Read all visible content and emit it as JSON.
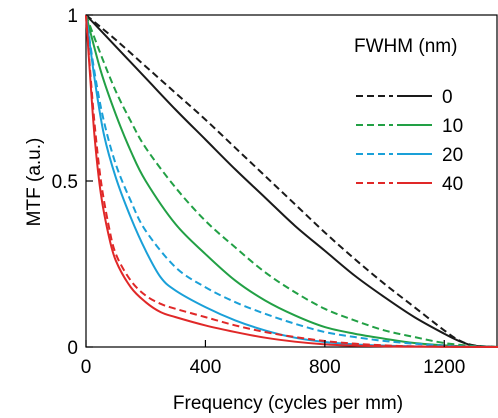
{
  "chart_data": {
    "type": "line",
    "xlabel": "Frequency (cycles per mm)",
    "ylabel": "MTF (a.u.)",
    "xlim": [
      0,
      1380
    ],
    "ylim": [
      0,
      1
    ],
    "x_ticks": [
      0,
      400,
      800,
      1200
    ],
    "y_ticks": [
      0,
      0.5,
      1
    ],
    "y_tick_labels": [
      "0",
      "0.5",
      "1"
    ],
    "grid": false,
    "legend": {
      "title": "FWHM (nm)",
      "placement": "top-right",
      "style_note_entries": [
        "dashed",
        "solid"
      ]
    },
    "series": [
      {
        "name": "0",
        "color": "#1a1a1a",
        "dashed": [
          [
            0,
            1
          ],
          [
            100,
            0.925
          ],
          [
            200,
            0.845
          ],
          [
            300,
            0.765
          ],
          [
            400,
            0.685
          ],
          [
            500,
            0.6
          ],
          [
            600,
            0.515
          ],
          [
            700,
            0.43
          ],
          [
            800,
            0.345
          ],
          [
            900,
            0.265
          ],
          [
            1000,
            0.19
          ],
          [
            1100,
            0.12
          ],
          [
            1200,
            0.05
          ],
          [
            1250,
            0.02
          ],
          [
            1300,
            0.005
          ],
          [
            1380,
            0
          ]
        ],
        "solid": [
          [
            0,
            1
          ],
          [
            100,
            0.905
          ],
          [
            200,
            0.81
          ],
          [
            300,
            0.715
          ],
          [
            400,
            0.625
          ],
          [
            500,
            0.535
          ],
          [
            600,
            0.45
          ],
          [
            700,
            0.365
          ],
          [
            800,
            0.29
          ],
          [
            900,
            0.215
          ],
          [
            1000,
            0.15
          ],
          [
            1100,
            0.09
          ],
          [
            1200,
            0.04
          ],
          [
            1250,
            0.018
          ],
          [
            1300,
            0.004
          ],
          [
            1380,
            0
          ]
        ]
      },
      {
        "name": "10",
        "color": "#22a045",
        "dashed": [
          [
            0,
            1
          ],
          [
            50,
            0.88
          ],
          [
            100,
            0.77
          ],
          [
            150,
            0.68
          ],
          [
            200,
            0.6
          ],
          [
            300,
            0.48
          ],
          [
            400,
            0.38
          ],
          [
            500,
            0.3
          ],
          [
            600,
            0.225
          ],
          [
            700,
            0.165
          ],
          [
            800,
            0.115
          ],
          [
            900,
            0.08
          ],
          [
            1000,
            0.05
          ],
          [
            1100,
            0.03
          ],
          [
            1200,
            0.012
          ],
          [
            1300,
            0.003
          ],
          [
            1380,
            0
          ]
        ],
        "solid": [
          [
            0,
            1
          ],
          [
            50,
            0.83
          ],
          [
            100,
            0.7
          ],
          [
            150,
            0.59
          ],
          [
            200,
            0.5
          ],
          [
            300,
            0.37
          ],
          [
            400,
            0.28
          ],
          [
            500,
            0.2
          ],
          [
            600,
            0.14
          ],
          [
            700,
            0.095
          ],
          [
            800,
            0.06
          ],
          [
            900,
            0.04
          ],
          [
            1000,
            0.025
          ],
          [
            1100,
            0.012
          ],
          [
            1200,
            0.005
          ],
          [
            1300,
            0.001
          ],
          [
            1380,
            0
          ]
        ]
      },
      {
        "name": "20",
        "color": "#1aa0d8",
        "dashed": [
          [
            0,
            1
          ],
          [
            30,
            0.82
          ],
          [
            60,
            0.68
          ],
          [
            100,
            0.55
          ],
          [
            150,
            0.44
          ],
          [
            200,
            0.35
          ],
          [
            300,
            0.24
          ],
          [
            400,
            0.18
          ],
          [
            500,
            0.135
          ],
          [
            600,
            0.1
          ],
          [
            700,
            0.07
          ],
          [
            800,
            0.045
          ],
          [
            900,
            0.03
          ],
          [
            1000,
            0.018
          ],
          [
            1100,
            0.01
          ],
          [
            1200,
            0.004
          ],
          [
            1300,
            0.001
          ],
          [
            1380,
            0
          ]
        ],
        "solid": [
          [
            0,
            1
          ],
          [
            30,
            0.8
          ],
          [
            60,
            0.64
          ],
          [
            100,
            0.51
          ],
          [
            150,
            0.39
          ],
          [
            200,
            0.29
          ],
          [
            250,
            0.21
          ],
          [
            300,
            0.17
          ],
          [
            400,
            0.12
          ],
          [
            500,
            0.08
          ],
          [
            600,
            0.05
          ],
          [
            700,
            0.028
          ],
          [
            800,
            0.015
          ],
          [
            900,
            0.008
          ],
          [
            1000,
            0.004
          ],
          [
            1100,
            0.002
          ],
          [
            1200,
            0.001
          ],
          [
            1380,
            0
          ]
        ]
      },
      {
        "name": "40",
        "color": "#e02828",
        "dashed": [
          [
            0,
            1
          ],
          [
            15,
            0.82
          ],
          [
            30,
            0.66
          ],
          [
            50,
            0.5
          ],
          [
            75,
            0.37
          ],
          [
            100,
            0.28
          ],
          [
            150,
            0.2
          ],
          [
            200,
            0.155
          ],
          [
            250,
            0.13
          ],
          [
            300,
            0.115
          ],
          [
            400,
            0.09
          ],
          [
            500,
            0.065
          ],
          [
            600,
            0.045
          ],
          [
            700,
            0.03
          ],
          [
            800,
            0.018
          ],
          [
            900,
            0.01
          ],
          [
            1000,
            0.005
          ],
          [
            1100,
            0.002
          ],
          [
            1380,
            0
          ]
        ],
        "solid": [
          [
            0,
            1
          ],
          [
            15,
            0.8
          ],
          [
            30,
            0.62
          ],
          [
            50,
            0.46
          ],
          [
            75,
            0.34
          ],
          [
            100,
            0.26
          ],
          [
            150,
            0.18
          ],
          [
            200,
            0.135
          ],
          [
            250,
            0.105
          ],
          [
            300,
            0.09
          ],
          [
            400,
            0.065
          ],
          [
            500,
            0.045
          ],
          [
            600,
            0.028
          ],
          [
            700,
            0.016
          ],
          [
            800,
            0.008
          ],
          [
            900,
            0.004
          ],
          [
            1000,
            0.002
          ],
          [
            1100,
            0.001
          ],
          [
            1380,
            0
          ]
        ]
      }
    ]
  }
}
